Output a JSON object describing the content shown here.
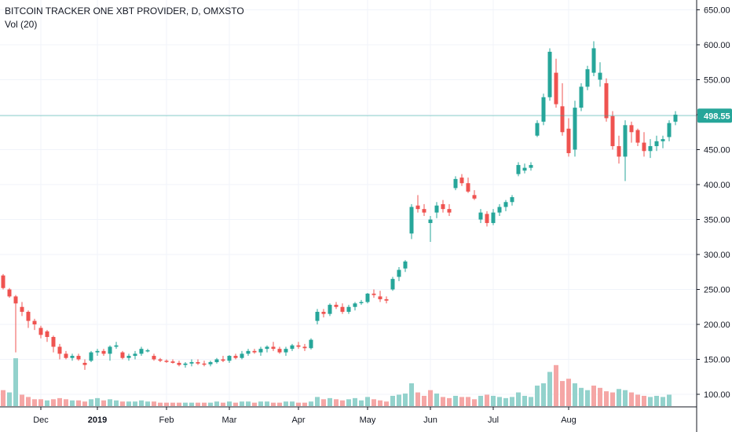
{
  "legend": {
    "title": "BITCOIN TRACKER ONE XBT PROVIDER, D, OMXSTO",
    "volume": "Vol (20)"
  },
  "last_price": "498.55",
  "colors": {
    "up": "#26a69a",
    "down": "#ef5350",
    "vol_up": "#93d2cc",
    "vol_down": "#f5a6a5",
    "grid": "#f0f3fa",
    "axis": "#131722",
    "last_line": "#26a69a"
  },
  "chart_data": {
    "type": "candlestick",
    "title": "BITCOIN TRACKER ONE XBT PROVIDER, D, OMXSTO",
    "ylim": [
      90,
      660
    ],
    "yticks": [
      "100.00",
      "150.00",
      "200.00",
      "250.00",
      "300.00",
      "350.00",
      "400.00",
      "450.00",
      "500.00",
      "550.00",
      "600.00",
      "650.00"
    ],
    "xticks": [
      {
        "label": "Dec",
        "bold": false,
        "index": 6
      },
      {
        "label": "2019",
        "bold": true,
        "index": 15
      },
      {
        "label": "Feb",
        "bold": false,
        "index": 26
      },
      {
        "label": "Mar",
        "bold": false,
        "index": 36
      },
      {
        "label": "Apr",
        "bold": false,
        "index": 47
      },
      {
        "label": "May",
        "bold": false,
        "index": 58
      },
      {
        "label": "Jun",
        "bold": false,
        "index": 68
      },
      {
        "label": "Jul",
        "bold": false,
        "index": 78
      },
      {
        "label": "Aug",
        "bold": false,
        "index": 90
      }
    ],
    "candles": [
      [
        270,
        272,
        250,
        252
      ],
      [
        250,
        252,
        238,
        240
      ],
      [
        240,
        242,
        160,
        230
      ],
      [
        225,
        232,
        212,
        218
      ],
      [
        218,
        220,
        195,
        205
      ],
      [
        205,
        208,
        192,
        200
      ],
      [
        195,
        198,
        180,
        185
      ],
      [
        190,
        192,
        175,
        182
      ],
      [
        182,
        184,
        160,
        168
      ],
      [
        168,
        172,
        150,
        158
      ],
      [
        158,
        162,
        150,
        152
      ],
      [
        152,
        158,
        148,
        155
      ],
      [
        155,
        158,
        148,
        150
      ],
      [
        145,
        150,
        135,
        142
      ],
      [
        148,
        162,
        146,
        160
      ],
      [
        160,
        165,
        155,
        162
      ],
      [
        162,
        165,
        155,
        158
      ],
      [
        158,
        170,
        148,
        168
      ],
      [
        168,
        175,
        165,
        170
      ],
      [
        160,
        162,
        150,
        152
      ],
      [
        152,
        158,
        148,
        155
      ],
      [
        155,
        162,
        150,
        158
      ],
      [
        158,
        168,
        155,
        165
      ],
      [
        162,
        165,
        160,
        163
      ],
      [
        155,
        158,
        148,
        150
      ],
      [
        150,
        152,
        146,
        148
      ],
      [
        148,
        150,
        145,
        147
      ],
      [
        147,
        150,
        144,
        145
      ],
      [
        145,
        148,
        140,
        142
      ],
      [
        142,
        146,
        138,
        144
      ],
      [
        144,
        150,
        140,
        146
      ],
      [
        146,
        150,
        142,
        144
      ],
      [
        144,
        148,
        140,
        143
      ],
      [
        143,
        148,
        140,
        146
      ],
      [
        146,
        152,
        144,
        150
      ],
      [
        150,
        155,
        146,
        148
      ],
      [
        148,
        156,
        145,
        155
      ],
      [
        155,
        158,
        150,
        152
      ],
      [
        152,
        162,
        150,
        158
      ],
      [
        158,
        165,
        155,
        162
      ],
      [
        162,
        165,
        158,
        160
      ],
      [
        160,
        168,
        155,
        165
      ],
      [
        165,
        170,
        160,
        168
      ],
      [
        168,
        175,
        162,
        165
      ],
      [
        165,
        168,
        158,
        160
      ],
      [
        160,
        168,
        155,
        165
      ],
      [
        165,
        172,
        162,
        170
      ],
      [
        170,
        175,
        165,
        168
      ],
      [
        168,
        172,
        162,
        166
      ],
      [
        166,
        180,
        164,
        178
      ],
      [
        205,
        222,
        200,
        218
      ],
      [
        218,
        222,
        210,
        215
      ],
      [
        215,
        230,
        212,
        228
      ],
      [
        228,
        232,
        222,
        225
      ],
      [
        225,
        230,
        215,
        218
      ],
      [
        218,
        228,
        215,
        225
      ],
      [
        225,
        232,
        220,
        230
      ],
      [
        232,
        235,
        228,
        232
      ],
      [
        232,
        245,
        230,
        244
      ],
      [
        244,
        250,
        238,
        242
      ],
      [
        240,
        248,
        232,
        236
      ],
      [
        236,
        240,
        230,
        234
      ],
      [
        250,
        268,
        248,
        265
      ],
      [
        268,
        282,
        262,
        278
      ],
      [
        280,
        292,
        275,
        290
      ],
      [
        330,
        372,
        322,
        368
      ],
      [
        370,
        385,
        360,
        365
      ],
      [
        365,
        372,
        355,
        360
      ],
      [
        345,
        355,
        318,
        350
      ],
      [
        360,
        375,
        352,
        370
      ],
      [
        372,
        378,
        360,
        365
      ],
      [
        365,
        372,
        355,
        360
      ],
      [
        395,
        412,
        392,
        408
      ],
      [
        410,
        415,
        398,
        402
      ],
      [
        402,
        410,
        388,
        390
      ],
      [
        385,
        392,
        378,
        380
      ],
      [
        350,
        365,
        345,
        360
      ],
      [
        358,
        362,
        340,
        345
      ],
      [
        345,
        365,
        342,
        360
      ],
      [
        360,
        372,
        355,
        368
      ],
      [
        368,
        378,
        362,
        375
      ],
      [
        375,
        385,
        370,
        382
      ],
      [
        415,
        432,
        412,
        428
      ],
      [
        420,
        430,
        416,
        424
      ],
      [
        424,
        432,
        420,
        428
      ],
      [
        470,
        492,
        468,
        488
      ],
      [
        490,
        530,
        485,
        525
      ],
      [
        525,
        595,
        520,
        590
      ],
      [
        560,
        580,
        510,
        515
      ],
      [
        512,
        545,
        470,
        475
      ],
      [
        480,
        495,
        440,
        445
      ],
      [
        450,
        520,
        440,
        510
      ],
      [
        510,
        545,
        505,
        540
      ],
      [
        540,
        570,
        535,
        565
      ],
      [
        560,
        605,
        555,
        595
      ],
      [
        550,
        575,
        540,
        560
      ],
      [
        545,
        552,
        490,
        495
      ],
      [
        498,
        505,
        450,
        455
      ],
      [
        455,
        470,
        430,
        440
      ],
      [
        440,
        492,
        405,
        485
      ],
      [
        485,
        490,
        460,
        475
      ],
      [
        478,
        480,
        455,
        460
      ],
      [
        460,
        475,
        440,
        448
      ],
      [
        448,
        465,
        438,
        455
      ],
      [
        455,
        470,
        448,
        462
      ],
      [
        462,
        470,
        452,
        465
      ],
      [
        468,
        492,
        462,
        488
      ],
      [
        490,
        505,
        485,
        500
      ]
    ],
    "volumes": [
      [
        14,
        0
      ],
      [
        12,
        1
      ],
      [
        42,
        1
      ],
      [
        10,
        0
      ],
      [
        8,
        0
      ],
      [
        6,
        0
      ],
      [
        6,
        0
      ],
      [
        5,
        1
      ],
      [
        6,
        0
      ],
      [
        7,
        0
      ],
      [
        6,
        0
      ],
      [
        5,
        1
      ],
      [
        5,
        0
      ],
      [
        4,
        0
      ],
      [
        6,
        1
      ],
      [
        7,
        1
      ],
      [
        5,
        0
      ],
      [
        6,
        1
      ],
      [
        5,
        1
      ],
      [
        4,
        0
      ],
      [
        4,
        1
      ],
      [
        4,
        1
      ],
      [
        5,
        1
      ],
      [
        4,
        1
      ],
      [
        4,
        0
      ],
      [
        3,
        0
      ],
      [
        3,
        0
      ],
      [
        3,
        0
      ],
      [
        3,
        0
      ],
      [
        3,
        1
      ],
      [
        3,
        1
      ],
      [
        3,
        0
      ],
      [
        3,
        0
      ],
      [
        3,
        1
      ],
      [
        4,
        1
      ],
      [
        3,
        0
      ],
      [
        4,
        1
      ],
      [
        3,
        0
      ],
      [
        4,
        1
      ],
      [
        4,
        1
      ],
      [
        3,
        0
      ],
      [
        4,
        1
      ],
      [
        4,
        1
      ],
      [
        3,
        0
      ],
      [
        3,
        0
      ],
      [
        4,
        1
      ],
      [
        4,
        1
      ],
      [
        3,
        0
      ],
      [
        3,
        0
      ],
      [
        4,
        1
      ],
      [
        8,
        1
      ],
      [
        6,
        0
      ],
      [
        7,
        1
      ],
      [
        6,
        0
      ],
      [
        5,
        0
      ],
      [
        6,
        1
      ],
      [
        7,
        1
      ],
      [
        5,
        1
      ],
      [
        8,
        1
      ],
      [
        6,
        0
      ],
      [
        5,
        0
      ],
      [
        4,
        0
      ],
      [
        9,
        1
      ],
      [
        10,
        1
      ],
      [
        11,
        1
      ],
      [
        20,
        1
      ],
      [
        12,
        0
      ],
      [
        9,
        0
      ],
      [
        14,
        0
      ],
      [
        11,
        1
      ],
      [
        8,
        0
      ],
      [
        7,
        0
      ],
      [
        9,
        1
      ],
      [
        8,
        0
      ],
      [
        8,
        0
      ],
      [
        6,
        0
      ],
      [
        9,
        1
      ],
      [
        10,
        0
      ],
      [
        9,
        1
      ],
      [
        8,
        1
      ],
      [
        7,
        1
      ],
      [
        8,
        1
      ],
      [
        12,
        1
      ],
      [
        9,
        1
      ],
      [
        8,
        1
      ],
      [
        18,
        1
      ],
      [
        20,
        1
      ],
      [
        30,
        1
      ],
      [
        36,
        0
      ],
      [
        22,
        0
      ],
      [
        24,
        0
      ],
      [
        20,
        1
      ],
      [
        16,
        1
      ],
      [
        14,
        1
      ],
      [
        18,
        0
      ],
      [
        16,
        0
      ],
      [
        13,
        0
      ],
      [
        12,
        0
      ],
      [
        15,
        1
      ],
      [
        14,
        1
      ],
      [
        12,
        0
      ],
      [
        10,
        0
      ],
      [
        9,
        0
      ],
      [
        8,
        1
      ],
      [
        9,
        1
      ],
      [
        8,
        1
      ],
      [
        10,
        1
      ]
    ]
  }
}
